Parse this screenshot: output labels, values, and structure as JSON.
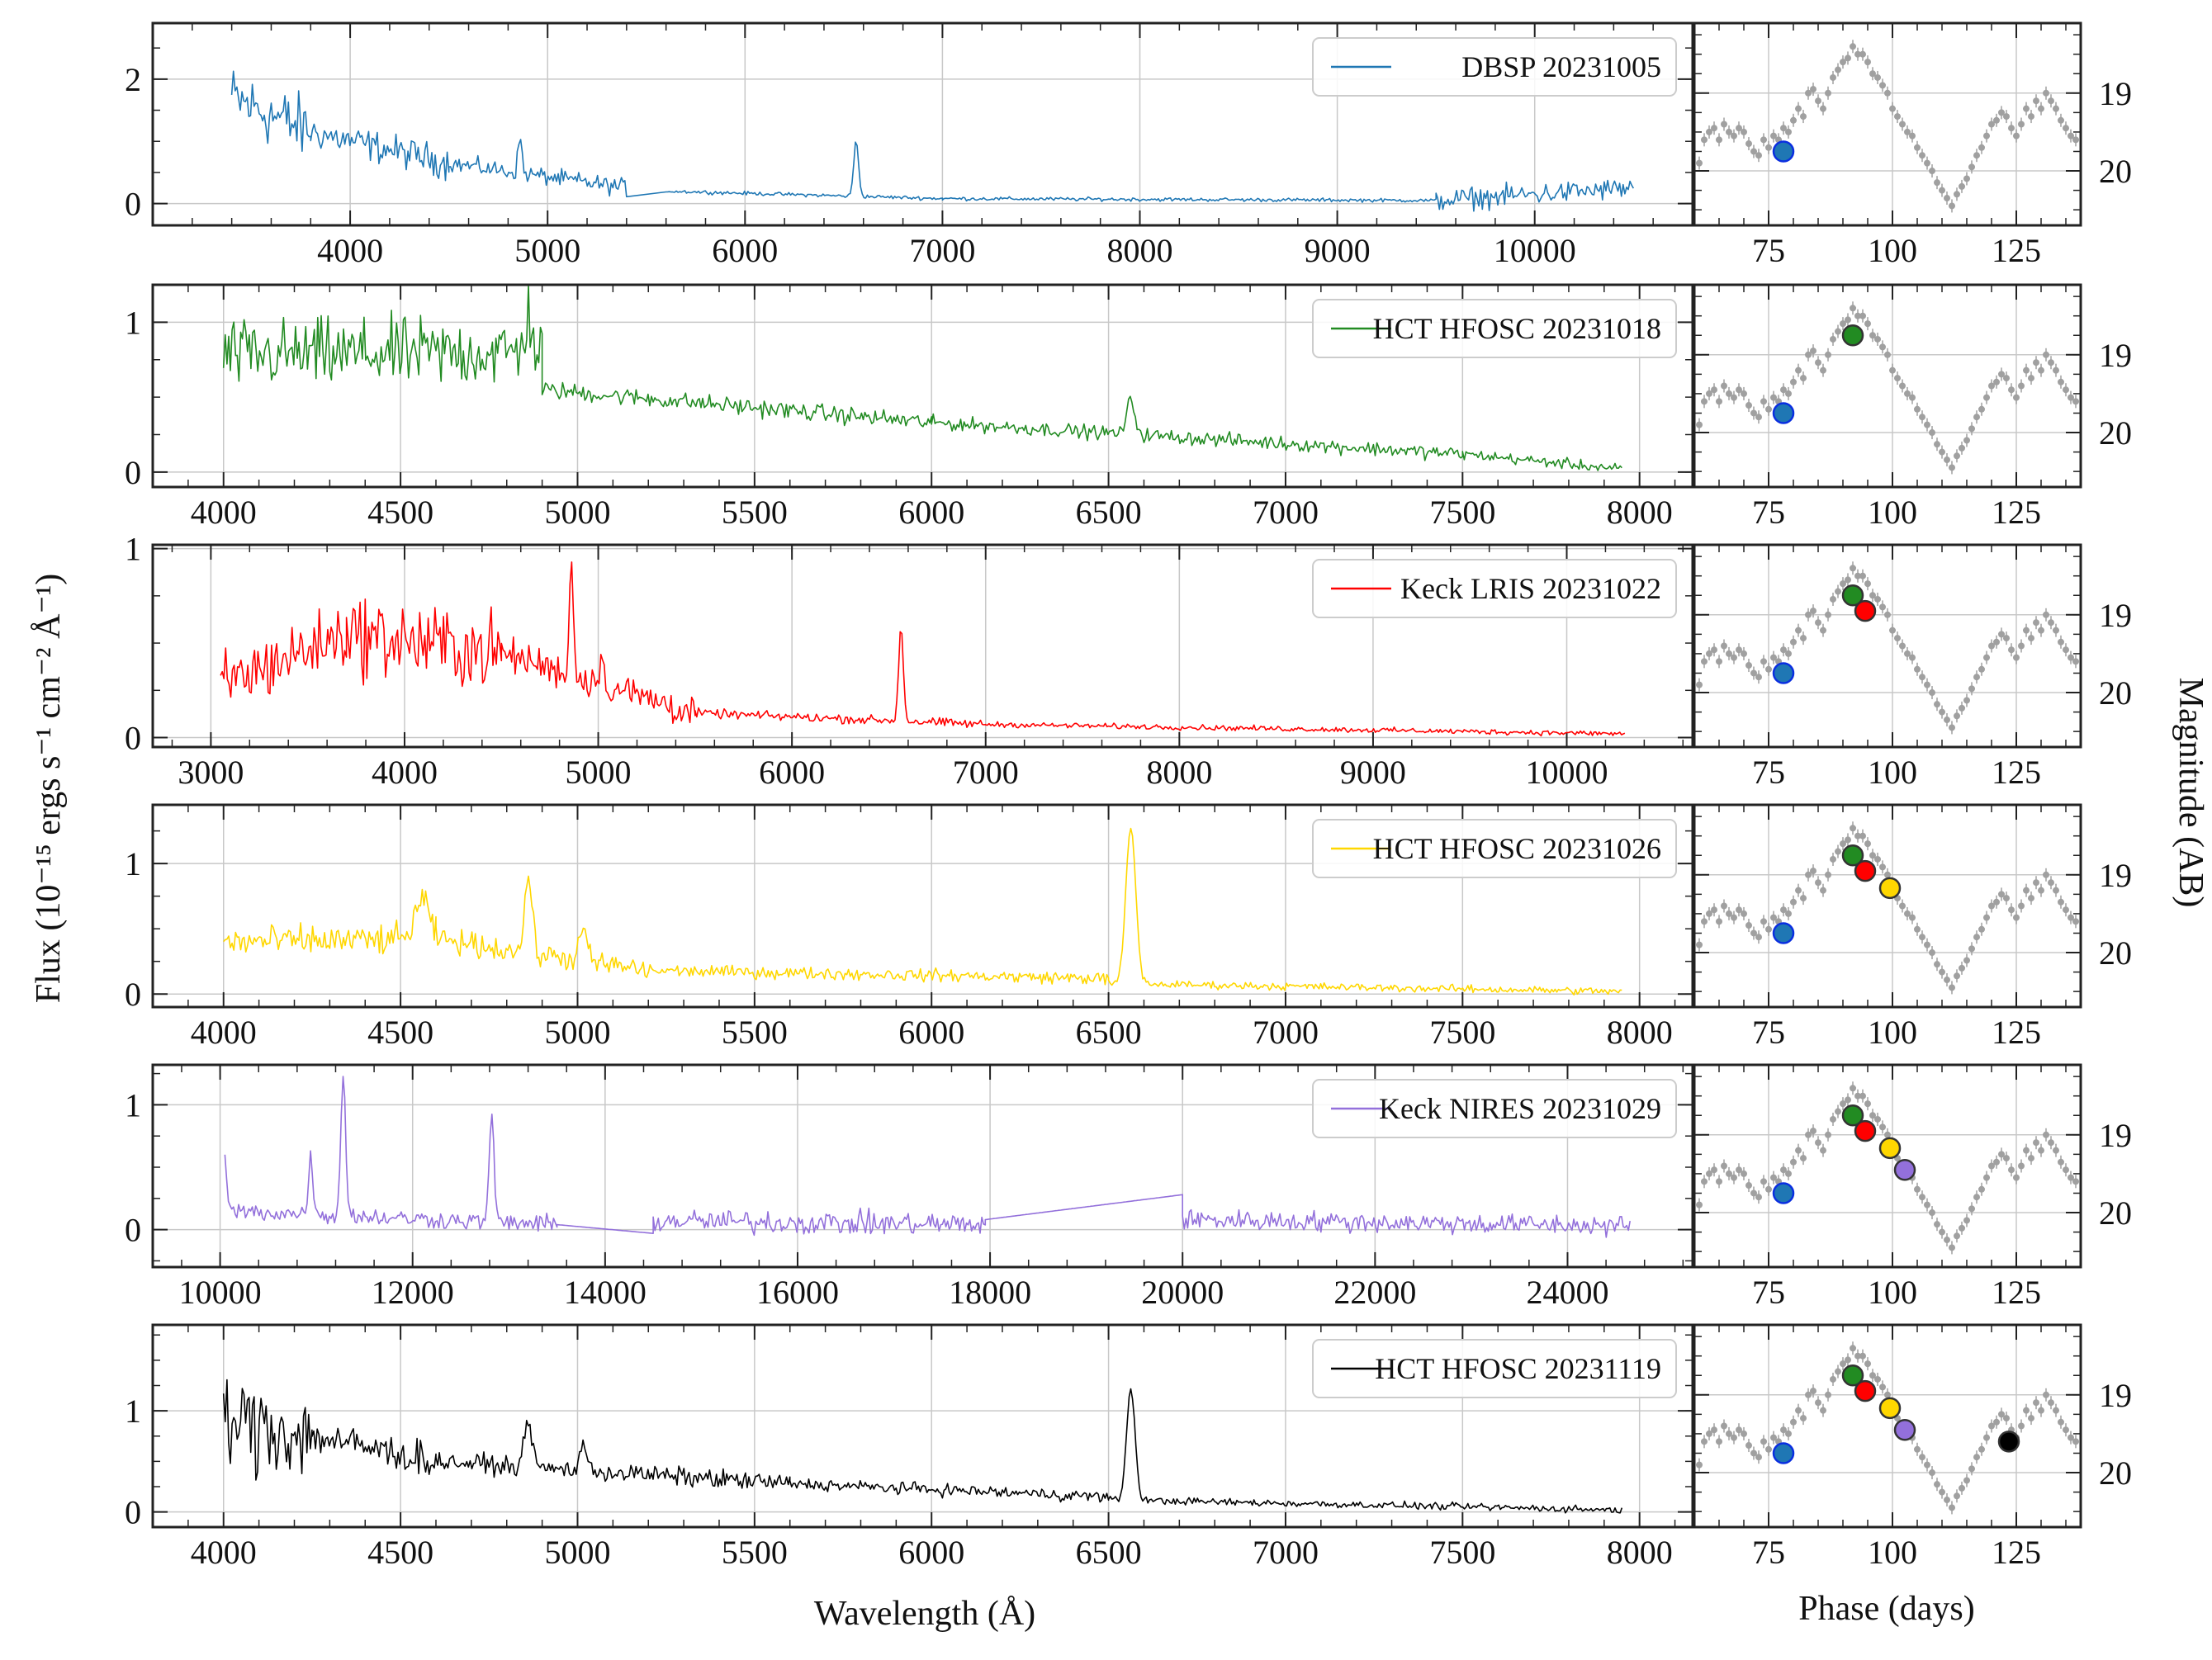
{
  "figure": {
    "ylabel": "Flux (10⁻¹⁵ ergs s⁻¹ cm⁻² Å⁻¹)",
    "xlabel_spectrum": "Wavelength (Å)",
    "xlabel_phase": "Phase (days)",
    "ylabel_mag": "Magnitude (AB)"
  },
  "colors": {
    "DBSP": "#1f77b4",
    "HFOSC_1018": "#228b22",
    "LRIS": "#ff0000",
    "HFOSC_1026": "#ffd700",
    "NIRES": "#9370db",
    "HFOSC_1119": "#000000",
    "lightcurve": "#a0a0a0",
    "grid": "#c8c8c8"
  },
  "chart_data": [
    {
      "type": "line",
      "id": "p1",
      "legend": "DBSP 20231005",
      "color": "#1f77b4",
      "xlim": [
        3000,
        10800
      ],
      "ylim": [
        -0.35,
        2.9
      ],
      "xticks": [
        4000,
        5000,
        6000,
        7000,
        8000,
        9000,
        10000
      ],
      "yticks": [
        0,
        2
      ],
      "x_minor_step": 200,
      "y_minor_step": 0.5,
      "gaps": [
        [
          5400,
          5600
        ]
      ],
      "segments": [
        {
          "x0": 3400,
          "y0": 1.7,
          "x1": 3800,
          "y1": 1.15,
          "noise": 0.45
        },
        {
          "x0": 3800,
          "y0": 1.15,
          "x1": 4500,
          "y1": 0.65,
          "noise": 0.22
        },
        {
          "x0": 4500,
          "y0": 0.65,
          "x1": 5400,
          "y1": 0.25,
          "noise": 0.12
        },
        {
          "x0": 5600,
          "y0": 0.2,
          "x1": 7000,
          "y1": 0.08,
          "noise": 0.025
        },
        {
          "x0": 7000,
          "y0": 0.08,
          "x1": 9500,
          "y1": 0.05,
          "noise": 0.025
        },
        {
          "x0": 9500,
          "y0": 0.05,
          "x1": 10500,
          "y1": 0.25,
          "noise": 0.15
        }
      ],
      "lines": [
        [
          4860,
          0.55,
          10
        ],
        [
          6563,
          0.9,
          12
        ]
      ]
    },
    {
      "type": "line",
      "id": "p2",
      "legend": "HCT HFOSC 20231018",
      "color": "#228b22",
      "xlim": [
        3800,
        8150
      ],
      "ylim": [
        -0.1,
        1.25
      ],
      "xticks": [
        4000,
        4500,
        5000,
        5500,
        6000,
        6500,
        7000,
        7500,
        8000
      ],
      "yticks": [
        0,
        1
      ],
      "x_minor_step": 100,
      "y_minor_step": 0.25,
      "gaps": [],
      "segments": [
        {
          "x0": 4000,
          "y0": 0.78,
          "x1": 4900,
          "y1": 0.8,
          "noise": 0.2
        },
        {
          "x0": 4900,
          "y0": 0.55,
          "x1": 6000,
          "y1": 0.33,
          "noise": 0.05
        },
        {
          "x0": 6000,
          "y0": 0.33,
          "x1": 7500,
          "y1": 0.12,
          "noise": 0.04
        },
        {
          "x0": 7500,
          "y0": 0.12,
          "x1": 7950,
          "y1": 0.02,
          "noise": 0.03
        }
      ],
      "lines": [
        [
          6563,
          0.22,
          12
        ],
        [
          4861,
          0.25,
          10
        ]
      ]
    },
    {
      "type": "line",
      "id": "p3",
      "legend": "Keck LRIS 20231022",
      "color": "#ff0000",
      "xlim": [
        2700,
        10650
      ],
      "ylim": [
        -0.05,
        1.02
      ],
      "xticks": [
        3000,
        4000,
        5000,
        6000,
        7000,
        8000,
        9000,
        10000
      ],
      "yticks": [
        0,
        1
      ],
      "x_minor_step": 200,
      "y_minor_step": 0.25,
      "gaps": [],
      "segments": [
        {
          "x0": 3050,
          "y0": 0.28,
          "x1": 3700,
          "y1": 0.55,
          "noise": 0.15
        },
        {
          "x0": 3700,
          "y0": 0.55,
          "x1": 4500,
          "y1": 0.45,
          "noise": 0.18
        },
        {
          "x0": 4500,
          "y0": 0.45,
          "x1": 5500,
          "y1": 0.13,
          "noise": 0.08
        },
        {
          "x0": 5500,
          "y0": 0.13,
          "x1": 7000,
          "y1": 0.07,
          "noise": 0.02
        },
        {
          "x0": 7000,
          "y0": 0.07,
          "x1": 10300,
          "y1": 0.02,
          "noise": 0.012
        }
      ],
      "lines": [
        [
          4861,
          0.6,
          10
        ],
        [
          6563,
          0.5,
          12
        ],
        [
          5015,
          0.2,
          8
        ]
      ]
    },
    {
      "type": "line",
      "id": "p4",
      "legend": "HCT HFOSC 20231026",
      "color": "#ffd700",
      "xlim": [
        3800,
        8150
      ],
      "ylim": [
        -0.1,
        1.45
      ],
      "xticks": [
        4000,
        4500,
        5000,
        5500,
        6000,
        6500,
        7000,
        7500,
        8000
      ],
      "yticks": [
        0,
        1
      ],
      "x_minor_step": 100,
      "y_minor_step": 0.25,
      "gaps": [],
      "segments": [
        {
          "x0": 4000,
          "y0": 0.4,
          "x1": 4600,
          "y1": 0.42,
          "noise": 0.1
        },
        {
          "x0": 4600,
          "y0": 0.42,
          "x1": 5200,
          "y1": 0.18,
          "noise": 0.08
        },
        {
          "x0": 5200,
          "y0": 0.18,
          "x1": 6500,
          "y1": 0.12,
          "noise": 0.04
        },
        {
          "x0": 6500,
          "y0": 0.08,
          "x1": 7950,
          "y1": 0.02,
          "noise": 0.025
        }
      ],
      "lines": [
        [
          4861,
          0.6,
          10
        ],
        [
          6563,
          1.2,
          14
        ],
        [
          4560,
          0.3,
          20
        ],
        [
          5015,
          0.25,
          10
        ]
      ]
    },
    {
      "type": "line",
      "id": "p5",
      "legend": "Keck NIRES 20231029",
      "color": "#9370db",
      "xlim": [
        9300,
        25300
      ],
      "ylim": [
        -0.3,
        1.32
      ],
      "xticks": [
        10000,
        12000,
        14000,
        16000,
        18000,
        20000,
        22000,
        24000
      ],
      "yticks": [
        0,
        1
      ],
      "x_minor_step": 400,
      "y_minor_step": 0.25,
      "gaps": [],
      "segments": [
        {
          "x0": 10050,
          "y0": 0.15,
          "x1": 13500,
          "y1": 0.04,
          "noise": 0.06
        },
        {
          "x0": 13500,
          "y0": 0.04,
          "x1": 14500,
          "y1": -0.03,
          "noise": 0.0
        },
        {
          "x0": 14500,
          "y0": 0.07,
          "x1": 17950,
          "y1": 0.04,
          "noise": 0.08
        },
        {
          "x0": 17950,
          "y0": 0.08,
          "x1": 20000,
          "y1": 0.28,
          "noise": 0.0
        },
        {
          "x0": 20000,
          "y0": 0.08,
          "x1": 24650,
          "y1": 0.03,
          "noise": 0.07
        }
      ],
      "lines": [
        [
          11280,
          1.15,
          25
        ],
        [
          12820,
          0.85,
          25
        ],
        [
          10940,
          0.55,
          20
        ],
        [
          10050,
          0.4,
          20
        ]
      ]
    },
    {
      "type": "line",
      "id": "p6",
      "legend": "HCT HFOSC 20231119",
      "color": "#000000",
      "xlim": [
        3800,
        8150
      ],
      "ylim": [
        -0.15,
        1.85
      ],
      "xticks": [
        4000,
        4500,
        5000,
        5500,
        6000,
        6500,
        7000,
        7500,
        8000
      ],
      "yticks": [
        0,
        1
      ],
      "x_minor_step": 100,
      "y_minor_step": 0.25,
      "gaps": [],
      "segments": [
        {
          "x0": 4000,
          "y0": 0.9,
          "x1": 4250,
          "y1": 0.75,
          "noise": 0.4
        },
        {
          "x0": 4250,
          "y0": 0.75,
          "x1": 4600,
          "y1": 0.5,
          "noise": 0.15
        },
        {
          "x0": 4600,
          "y0": 0.5,
          "x1": 5600,
          "y1": 0.28,
          "noise": 0.08
        },
        {
          "x0": 5600,
          "y0": 0.28,
          "x1": 6500,
          "y1": 0.15,
          "noise": 0.05
        },
        {
          "x0": 6500,
          "y0": 0.12,
          "x1": 7950,
          "y1": 0.02,
          "noise": 0.03
        }
      ],
      "lines": [
        [
          6563,
          1.1,
          12
        ],
        [
          4861,
          0.5,
          10
        ],
        [
          5015,
          0.3,
          8
        ]
      ]
    }
  ],
  "lightcurve": {
    "type": "scatter",
    "xlim": [
      60,
      138
    ],
    "ylim": [
      20.7,
      18.1
    ],
    "xticks": [
      75,
      100,
      125
    ],
    "yticks": [
      19,
      20
    ],
    "x_minor_step": 5,
    "y_minor_step": 0.25,
    "points": [
      [
        61,
        19.9
      ],
      [
        62,
        19.6
      ],
      [
        63,
        19.5
      ],
      [
        64,
        19.45
      ],
      [
        65,
        19.6
      ],
      [
        66,
        19.4
      ],
      [
        67,
        19.5
      ],
      [
        68,
        19.55
      ],
      [
        69,
        19.45
      ],
      [
        70,
        19.5
      ],
      [
        71,
        19.65
      ],
      [
        72,
        19.75
      ],
      [
        73,
        19.8
      ],
      [
        74,
        19.6
      ],
      [
        75,
        19.7
      ],
      [
        76,
        19.55
      ],
      [
        77,
        19.6
      ],
      [
        78,
        19.45
      ],
      [
        79,
        19.5
      ],
      [
        80,
        19.35
      ],
      [
        81,
        19.2
      ],
      [
        82,
        19.3
      ],
      [
        83,
        19.0
      ],
      [
        84,
        18.95
      ],
      [
        85,
        19.1
      ],
      [
        86,
        19.2
      ],
      [
        87,
        19.0
      ],
      [
        88,
        18.8
      ],
      [
        89,
        18.7
      ],
      [
        90,
        18.6
      ],
      [
        91,
        18.55
      ],
      [
        92,
        18.4
      ],
      [
        93,
        18.5
      ],
      [
        94,
        18.5
      ],
      [
        95,
        18.6
      ],
      [
        96,
        18.75
      ],
      [
        97,
        18.8
      ],
      [
        98,
        18.9
      ],
      [
        99,
        19.0
      ],
      [
        100,
        19.2
      ],
      [
        101,
        19.3
      ],
      [
        102,
        19.4
      ],
      [
        103,
        19.5
      ],
      [
        104,
        19.55
      ],
      [
        105,
        19.7
      ],
      [
        106,
        19.8
      ],
      [
        107,
        19.9
      ],
      [
        108,
        20.0
      ],
      [
        109,
        20.15
      ],
      [
        110,
        20.25
      ],
      [
        111,
        20.35
      ],
      [
        112,
        20.45
      ],
      [
        113,
        20.3
      ],
      [
        114,
        20.2
      ],
      [
        115,
        20.1
      ],
      [
        116,
        19.95
      ],
      [
        117,
        19.8
      ],
      [
        118,
        19.7
      ],
      [
        119,
        19.55
      ],
      [
        120,
        19.4
      ],
      [
        121,
        19.35
      ],
      [
        122,
        19.25
      ],
      [
        123,
        19.3
      ],
      [
        124,
        19.45
      ],
      [
        125,
        19.55
      ],
      [
        126,
        19.4
      ],
      [
        127,
        19.2
      ],
      [
        128,
        19.3
      ],
      [
        129,
        19.1
      ],
      [
        130,
        19.2
      ],
      [
        131,
        19.0
      ],
      [
        132,
        19.1
      ],
      [
        133,
        19.2
      ],
      [
        134,
        19.35
      ],
      [
        135,
        19.45
      ],
      [
        136,
        19.55
      ],
      [
        137,
        19.6
      ]
    ],
    "epochs": [
      {
        "name": "DBSP 20231005",
        "phase": 78,
        "mag": 19.75,
        "color": "#1f77b4"
      },
      {
        "name": "HCT HFOSC 20231018",
        "phase": 92,
        "mag": 18.75,
        "color": "#228b22"
      },
      {
        "name": "Keck LRIS 20231022",
        "phase": 94.5,
        "mag": 18.95,
        "color": "#ff0000"
      },
      {
        "name": "HCT HFOSC 20231026",
        "phase": 99.5,
        "mag": 19.17,
        "color": "#ffd700"
      },
      {
        "name": "Keck NIRES 20231029",
        "phase": 102.5,
        "mag": 19.45,
        "color": "#9370db"
      },
      {
        "name": "HCT HFOSC 20231119",
        "phase": 123.5,
        "mag": 19.6,
        "color": "#000000"
      }
    ]
  }
}
